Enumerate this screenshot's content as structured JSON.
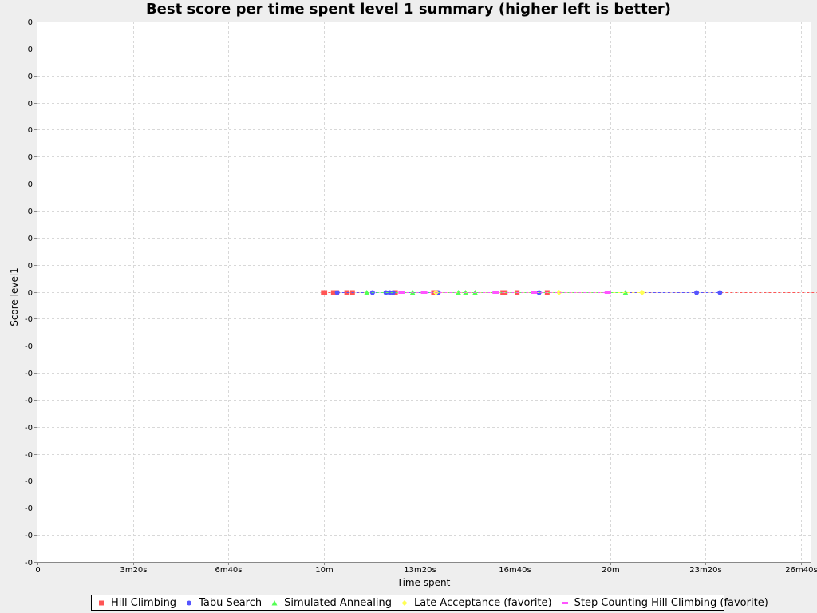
{
  "chart_data": {
    "type": "scatter",
    "title": "Best score per time spent level 1 summary (higher left is better)",
    "xlabel": "Time spent",
    "ylabel": "Score level1",
    "xlim_seconds": [
      0,
      1620
    ],
    "x_ticks": [
      {
        "value": 0,
        "label": "0"
      },
      {
        "value": 200,
        "label": "3m20s"
      },
      {
        "value": 400,
        "label": "6m40s"
      },
      {
        "value": 600,
        "label": "10m"
      },
      {
        "value": 800,
        "label": "13m20s"
      },
      {
        "value": 1000,
        "label": "16m40s"
      },
      {
        "value": 1200,
        "label": "20m"
      },
      {
        "value": 1400,
        "label": "23m20s"
      },
      {
        "value": 1600,
        "label": "26m40s"
      }
    ],
    "y_tick_labels": [
      "0",
      "0",
      "0",
      "0",
      "0",
      "0",
      "0",
      "0",
      "0",
      "0",
      "0",
      "-0",
      "-0",
      "-0",
      "-0",
      "-0",
      "-0",
      "-0",
      "-0",
      "-0",
      "-0"
    ],
    "y_value_tick_index": 10,
    "grid": true,
    "legend_position": "bottom",
    "series": [
      {
        "name": "Hill Climbing",
        "color": "#ff5555",
        "marker": "square",
        "x": [
          599,
          600,
          601,
          602,
          620,
          623,
          627,
          648,
          660,
          750,
          830,
          835,
          975,
          977,
          980,
          1005,
          1068,
          1660
        ],
        "y_index": 10
      },
      {
        "name": "Tabu Search",
        "color": "#5555ff",
        "marker": "circle",
        "x": [
          628,
          702,
          730,
          738,
          745,
          840,
          1051,
          1381,
          1430
        ],
        "y_index": 10
      },
      {
        "name": "Simulated Annealing",
        "color": "#55ff55",
        "marker": "triangle",
        "x": [
          690,
          786,
          882,
          897,
          917,
          1232
        ],
        "y_index": 10
      },
      {
        "name": "Late Acceptance (favorite)",
        "color": "#ffff55",
        "marker": "diamond",
        "x": [
          835,
          1093,
          1267
        ],
        "y_index": 10
      },
      {
        "name": "Step Counting Hill Climbing (favorite)",
        "color": "#ff55ff",
        "marker": "hbar",
        "x": [
          763,
          810,
          960,
          1040,
          1195
        ],
        "y_index": 10
      }
    ]
  }
}
